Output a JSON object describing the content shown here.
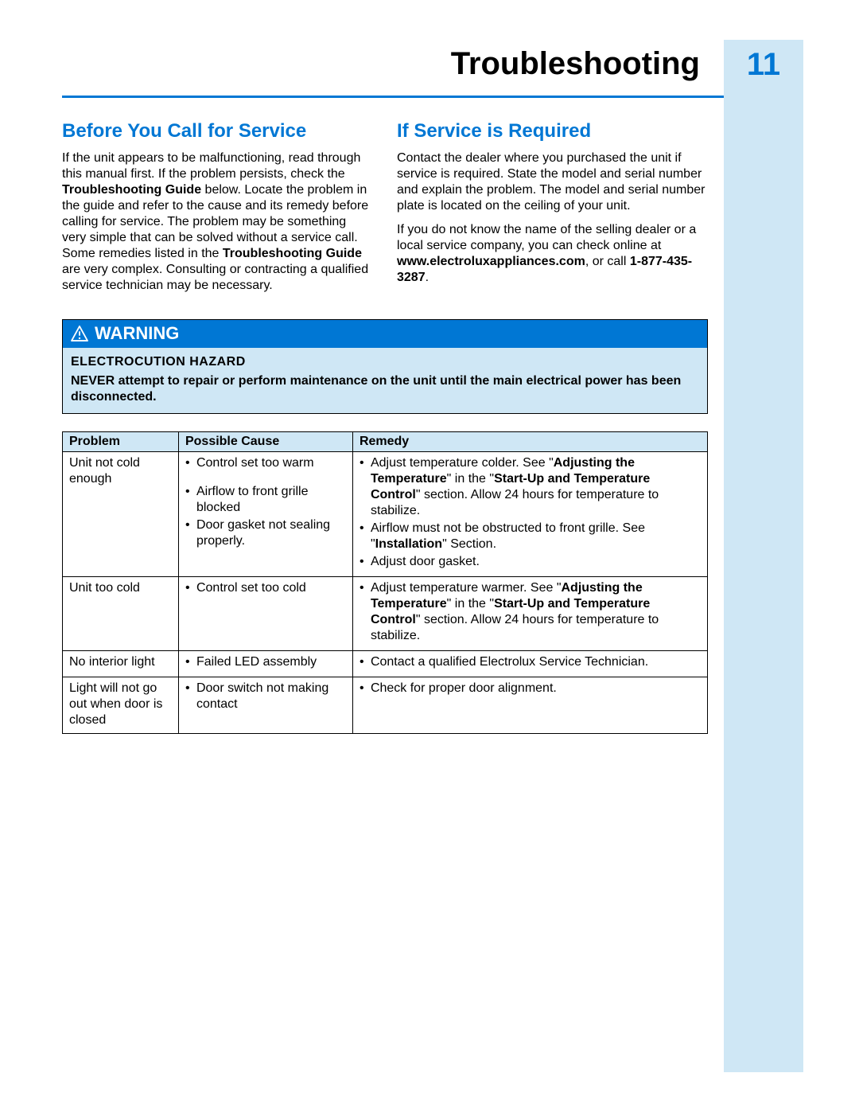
{
  "colors": {
    "brand_blue": "#0077d4",
    "light_blue": "#cfe7f5",
    "text": "#000000",
    "white": "#ffffff"
  },
  "header": {
    "title": "Troubleshooting",
    "page_number": "11"
  },
  "sections": {
    "left": {
      "heading": "Before You Call for Service",
      "para1a": "If the unit appears to be malfunctioning, read through this manual first. If the problem persists, check the ",
      "para1b_bold": "Troubleshooting Guide",
      "para1c": " below. Locate the problem in the guide and refer to the cause and its remedy before calling for service. The problem may be something very simple that can be solved without a service call. Some remedies listed in the ",
      "para1d_bold": "Troubleshooting Guide",
      "para1e": " are very complex. Consulting or contracting a qualified service technician may be necessary."
    },
    "right": {
      "heading": "If Service is Required",
      "para1": "Contact the dealer where you purchased the unit if service is required. State the model and serial number and explain the problem. The model and serial number plate is located on the ceiling of your unit.",
      "para2a": "If you do not know the name of the selling dealer or a local service company, you can check online at ",
      "para2b_bold": "www.electroluxappliances.com",
      "para2c": ", or call ",
      "para2d_bold": "1-877-435-3287",
      "para2e": "."
    }
  },
  "warning": {
    "label": "WARNING",
    "hazard_title": "ELECTROCUTION HAZARD",
    "hazard_text": "NEVER attempt to repair or perform maintenance on the unit until the main electrical power has been disconnected."
  },
  "table": {
    "headers": {
      "problem": "Problem",
      "cause": "Possible Cause",
      "remedy": "Remedy"
    },
    "rows": [
      {
        "problem": "Unit not cold enough",
        "causes": [
          "Control set too warm",
          "Airflow to front grille blocked",
          "Door gasket not sealing properly."
        ],
        "remedies": [
          {
            "pre": "Adjust temperature colder. See \"",
            "b1": "Adjusting the Temperature",
            "mid": "\" in the \"",
            "b2": "Start-Up and Temperature Control",
            "post": "\" section. Allow 24 hours for temperature to stabilize."
          },
          {
            "pre": "Airflow must not be obstructed to front grille. See \"",
            "b1": "Installation",
            "mid": "",
            "b2": "",
            "post": "\" Section."
          },
          {
            "pre": "Adjust door gasket.",
            "b1": "",
            "mid": "",
            "b2": "",
            "post": ""
          }
        ]
      },
      {
        "problem": "Unit too cold",
        "causes": [
          "Control set too cold"
        ],
        "remedies": [
          {
            "pre": "Adjust temperature warmer. See \"",
            "b1": "Adjusting the Temperature",
            "mid": "\" in the \"",
            "b2": "Start-Up and Temperature Control",
            "post": "\" section. Allow 24 hours for temperature to stabilize."
          }
        ]
      },
      {
        "problem": "No interior light",
        "causes": [
          "Failed LED assembly"
        ],
        "remedies": [
          {
            "pre": "Contact a qualified Electrolux Service Technician.",
            "b1": "",
            "mid": "",
            "b2": "",
            "post": ""
          }
        ]
      },
      {
        "problem": "Light will not go out when door is closed",
        "causes": [
          "Door switch not making contact"
        ],
        "remedies": [
          {
            "pre": "Check for proper door alignment.",
            "b1": "",
            "mid": "",
            "b2": "",
            "post": ""
          }
        ]
      }
    ]
  }
}
